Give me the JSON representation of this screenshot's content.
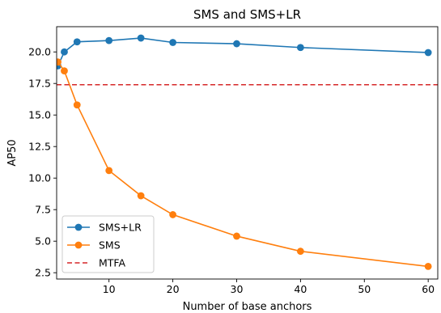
{
  "chart_data": {
    "type": "line",
    "title": "SMS and SMS+LR",
    "xlabel": "Number of base anchors",
    "ylabel": "AP50",
    "xlim": [
      1.8,
      61.5
    ],
    "ylim": [
      2.0,
      22.0
    ],
    "x_ticks": [
      10,
      20,
      30,
      40,
      50,
      60
    ],
    "y_ticks": [
      2.5,
      5.0,
      7.5,
      10.0,
      12.5,
      15.0,
      17.5,
      20.0
    ],
    "x_tick_labels": [
      "10",
      "20",
      "30",
      "40",
      "50",
      "60"
    ],
    "y_tick_labels": [
      "2.5",
      "5.0",
      "7.5",
      "10.0",
      "12.5",
      "15.0",
      "17.5",
      "20.0"
    ],
    "grid": false,
    "legend_position": "lower-left",
    "series": [
      {
        "name": "SMS+LR",
        "color": "#1f77b4",
        "style": "line-marker",
        "x": [
          2,
          3,
          5,
          10,
          15,
          20,
          30,
          40,
          60
        ],
        "y": [
          18.9,
          20.0,
          20.8,
          20.9,
          21.1,
          20.75,
          20.65,
          20.35,
          19.95
        ]
      },
      {
        "name": "SMS",
        "color": "#ff7f0e",
        "style": "line-marker",
        "x": [
          2,
          3,
          5,
          10,
          15,
          20,
          30,
          40,
          60
        ],
        "y": [
          19.2,
          18.5,
          15.8,
          10.6,
          8.6,
          7.1,
          5.4,
          4.2,
          3.0
        ]
      },
      {
        "name": "MTFA",
        "color": "#d62728",
        "style": "dashed-hline",
        "y": 17.4
      }
    ]
  }
}
